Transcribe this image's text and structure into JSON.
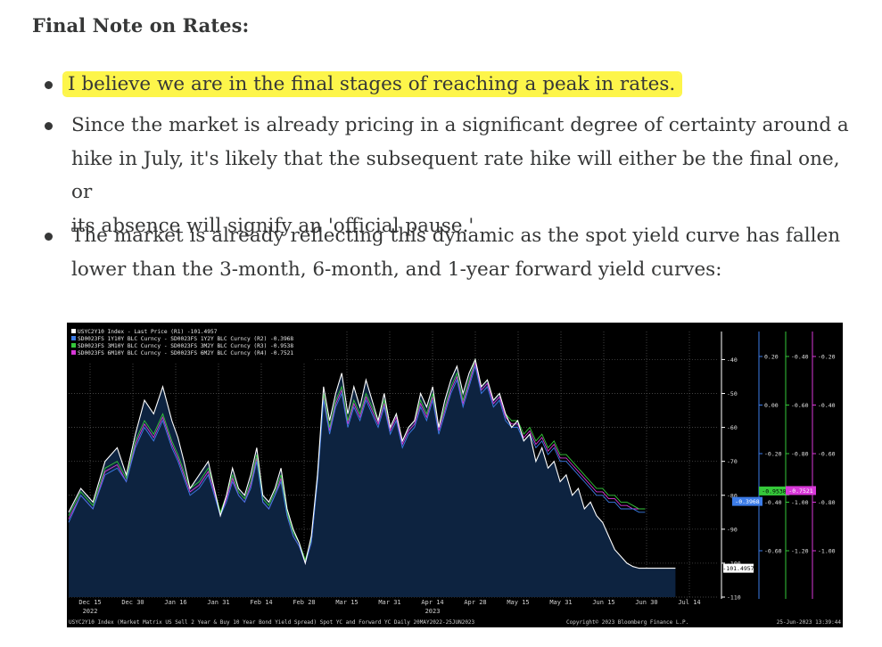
{
  "heading": "Final Note on Rates:",
  "bullets": [
    {
      "text": "I believe we are in the final stages of reaching a peak in rates.",
      "highlight": "#fdf54a"
    },
    {
      "lines": [
        "Since the market is already pricing in a significant degree of certainty around a",
        "hike in July, it's likely that the subsequent rate hike will either be the final one, or",
        "its absence will signify an 'official pause.'"
      ]
    },
    {
      "lines": [
        "The market is already reflecting this dynamic as the spot yield curve has fallen",
        "lower than the 3-month, 6-month, and 1-year forward yield curves:"
      ]
    }
  ],
  "chart_data": {
    "type": "line",
    "legend": [
      {
        "label": "USYC2Y10 Index - Last Price (R1)",
        "value": "-101.4957",
        "color": "#ffffff"
      },
      {
        "label": "SD0023FS 1Y10Y BLC Curncy - SD0023FS 1Y2Y BLC Curncy (R2)",
        "value": "-0.3968",
        "color": "#3c7ce8"
      },
      {
        "label": "SD0023FS 3M10Y BLC Curncy - SD0023FS 3M2Y BLC Curncy (R3)",
        "value": "-0.9538",
        "color": "#35c83a"
      },
      {
        "label": "SD0023FS 6M10Y BLC Curncy - SD0023FS 6M2Y BLC Curncy (R4)",
        "value": "-0.7521",
        "color": "#d838d8"
      }
    ],
    "x_ticks": [
      "Dec 15",
      "Dec 30",
      "Jan 16",
      "Jan 31",
      "Feb 14",
      "Feb 28",
      "Mar 15",
      "Mar 31",
      "Apr 14",
      "Apr 28",
      "May 15",
      "May 31",
      "Jun 15",
      "Jun 30",
      "Jul 14"
    ],
    "x_year_labels": [
      {
        "at": "Dec 15",
        "year": "2022"
      },
      {
        "at": "Apr 14",
        "year": "2023"
      }
    ],
    "axes": [
      {
        "id": "R1",
        "color": "#ffffff",
        "ticks": [
          "-40",
          "-50",
          "-60",
          "-70",
          "-80",
          "-90",
          "-100",
          "-110"
        ],
        "ylim": [
          -110,
          -37
        ],
        "last": "-101.4957"
      },
      {
        "id": "R2",
        "color": "#3c7ce8",
        "ticks": [
          "0.20",
          "0.00",
          "-0.20",
          "-0.40",
          "-0.60"
        ],
        "ylim": [
          -0.6,
          0.2
        ],
        "last": "-0.3968"
      },
      {
        "id": "R3",
        "color": "#35c83a",
        "ticks": [
          "-0.40",
          "-0.60",
          "-0.80",
          "-1.00",
          "-1.20"
        ],
        "ylim": [
          -1.2,
          -0.4
        ],
        "last": "-0.9538"
      },
      {
        "id": "R4",
        "color": "#d838d8",
        "ticks": [
          "-0.20",
          "-0.40",
          "-0.60",
          "-0.80",
          "-1.00"
        ],
        "ylim": [
          -1.0,
          -0.2
        ],
        "last": "-0.7521"
      }
    ],
    "series": [
      {
        "name": "USYC2Y10 Index",
        "axis": "R1",
        "color": "#ffffff",
        "x": [
          0,
          4,
          8,
          12,
          16,
          19,
          22,
          25,
          28,
          31,
          34,
          36,
          38,
          40,
          43,
          46,
          48,
          50,
          52,
          54,
          56,
          58,
          60,
          62,
          64,
          66,
          68,
          70,
          72,
          74,
          76,
          78,
          80,
          82,
          84,
          86,
          88,
          90,
          92,
          94,
          96,
          98,
          100,
          102,
          104,
          106,
          108,
          110,
          112,
          114,
          116,
          118,
          120,
          122,
          124,
          126,
          128,
          130,
          132,
          134,
          136,
          138,
          140,
          142,
          144,
          146,
          148,
          150,
          152,
          154,
          156,
          158,
          160,
          162,
          164,
          166,
          168,
          170,
          172,
          174,
          176,
          178,
          180,
          182,
          184,
          186,
          188,
          190,
          192,
          194,
          196,
          198,
          200
        ],
        "y": [
          -85,
          -78,
          -82,
          -70,
          -66,
          -74,
          -62,
          -52,
          -56,
          -48,
          -58,
          -63,
          -70,
          -78,
          -74,
          -70,
          -78,
          -86,
          -80,
          -72,
          -78,
          -80,
          -74,
          -66,
          -80,
          -82,
          -78,
          -72,
          -84,
          -90,
          -94,
          -100,
          -92,
          -74,
          -48,
          -58,
          -50,
          -44,
          -56,
          -48,
          -54,
          -46,
          -52,
          -58,
          -50,
          -60,
          -56,
          -64,
          -60,
          -58,
          -50,
          -54,
          -48,
          -60,
          -52,
          -46,
          -42,
          -50,
          -44,
          -40,
          -48,
          -46,
          -52,
          -50,
          -56,
          -60,
          -58,
          -64,
          -62,
          -70,
          -66,
          -72,
          -70,
          -76,
          -74,
          -80,
          -78,
          -84,
          -82,
          -86,
          -88,
          -92,
          -96,
          -98,
          -100,
          -101,
          -101.5,
          -101.5,
          -101.5,
          -101.5,
          -101.5,
          -101.5,
          -101.5
        ]
      },
      {
        "name": "1Y10Y-1Y2Y",
        "axis": "R1",
        "color": "#3c7ce8",
        "x": [
          0,
          4,
          8,
          12,
          16,
          19,
          22,
          25,
          28,
          31,
          34,
          36,
          38,
          40,
          43,
          46,
          48,
          50,
          52,
          54,
          56,
          58,
          60,
          62,
          64,
          66,
          68,
          70,
          72,
          74,
          76,
          78,
          80,
          82,
          84,
          86,
          88,
          90,
          92,
          94,
          96,
          98,
          100,
          102,
          104,
          106,
          108,
          110,
          112,
          114,
          116,
          118,
          120,
          122,
          124,
          126,
          128,
          130,
          132,
          134,
          136,
          138,
          140,
          142,
          144,
          146,
          148,
          150,
          152,
          154,
          156,
          158,
          160,
          162,
          164,
          166,
          168,
          170,
          172,
          174,
          176,
          178,
          180,
          182,
          184,
          186,
          188,
          190
        ],
        "y": [
          -88,
          -80,
          -84,
          -74,
          -72,
          -76,
          -66,
          -60,
          -64,
          -58,
          -66,
          -70,
          -75,
          -80,
          -78,
          -74,
          -80,
          -86,
          -82,
          -76,
          -80,
          -82,
          -78,
          -70,
          -82,
          -84,
          -80,
          -76,
          -86,
          -92,
          -95,
          -100,
          -94,
          -76,
          -52,
          -62,
          -54,
          -50,
          -60,
          -54,
          -58,
          -52,
          -56,
          -60,
          -54,
          -62,
          -58,
          -66,
          -62,
          -60,
          -54,
          -58,
          -52,
          -62,
          -56,
          -50,
          -46,
          -54,
          -48,
          -42,
          -50,
          -48,
          -54,
          -52,
          -58,
          -60,
          -60,
          -64,
          -62,
          -66,
          -64,
          -68,
          -66,
          -70,
          -70,
          -72,
          -74,
          -76,
          -78,
          -80,
          -80,
          -82,
          -82,
          -84,
          -84,
          -84,
          -85,
          -85
        ]
      },
      {
        "name": "3M10Y-3M2Y",
        "axis": "R1",
        "color": "#35c83a",
        "x": [
          0,
          4,
          8,
          12,
          16,
          19,
          22,
          25,
          28,
          31,
          34,
          36,
          38,
          40,
          43,
          46,
          48,
          50,
          52,
          54,
          56,
          58,
          60,
          62,
          64,
          66,
          68,
          70,
          72,
          74,
          76,
          78,
          80,
          82,
          84,
          86,
          88,
          90,
          92,
          94,
          96,
          98,
          100,
          102,
          104,
          106,
          108,
          110,
          112,
          114,
          116,
          118,
          120,
          122,
          124,
          126,
          128,
          130,
          132,
          134,
          136,
          138,
          140,
          142,
          144,
          146,
          148,
          150,
          152,
          154,
          156,
          158,
          160,
          162,
          164,
          166,
          168,
          170,
          172,
          174,
          176,
          178,
          180,
          182,
          184,
          186,
          188,
          190
        ],
        "y": [
          -86,
          -79,
          -83,
          -72,
          -70,
          -75,
          -64,
          -58,
          -62,
          -56,
          -64,
          -68,
          -73,
          -78,
          -76,
          -72,
          -78,
          -85,
          -80,
          -74,
          -79,
          -81,
          -76,
          -68,
          -81,
          -83,
          -79,
          -74,
          -85,
          -91,
          -94,
          -99,
          -93,
          -74,
          -50,
          -60,
          -52,
          -48,
          -58,
          -52,
          -56,
          -50,
          -54,
          -58,
          -52,
          -60,
          -56,
          -64,
          -60,
          -58,
          -52,
          -56,
          -50,
          -60,
          -54,
          -48,
          -44,
          -52,
          -46,
          -40,
          -48,
          -46,
          -52,
          -50,
          -56,
          -58,
          -58,
          -62,
          -60,
          -64,
          -62,
          -66,
          -64,
          -68,
          -68,
          -70,
          -72,
          -74,
          -76,
          -78,
          -78,
          -80,
          -80,
          -82,
          -82,
          -83,
          -84,
          -84
        ]
      },
      {
        "name": "6M10Y-6M2Y",
        "axis": "R1",
        "color": "#d838d8",
        "x": [
          0,
          4,
          8,
          12,
          16,
          19,
          22,
          25,
          28,
          31,
          34,
          36,
          38,
          40,
          43,
          46,
          48,
          50,
          52,
          54,
          56,
          58,
          60,
          62,
          64,
          66,
          68,
          70,
          72,
          74,
          76,
          78,
          80,
          82,
          84,
          86,
          88,
          90,
          92,
          94,
          96,
          98,
          100,
          102,
          104,
          106,
          108,
          110,
          112,
          114,
          116,
          118,
          120,
          122,
          124,
          126,
          128,
          130,
          132,
          134,
          136,
          138,
          140,
          142,
          144,
          146,
          148,
          150,
          152,
          154,
          156,
          158,
          160,
          162,
          164,
          166,
          168,
          170,
          172,
          174,
          176,
          178,
          180,
          182,
          184,
          186,
          188,
          190
        ],
        "y": [
          -87,
          -80,
          -84,
          -73,
          -71,
          -76,
          -65,
          -59,
          -63,
          -57,
          -65,
          -69,
          -74,
          -79,
          -77,
          -73,
          -79,
          -86,
          -81,
          -75,
          -80,
          -82,
          -77,
          -69,
          -82,
          -84,
          -80,
          -75,
          -86,
          -92,
          -95,
          -100,
          -94,
          -75,
          -51,
          -61,
          -53,
          -49,
          -59,
          -53,
          -57,
          -51,
          -55,
          -59,
          -53,
          -61,
          -57,
          -65,
          -61,
          -59,
          -53,
          -57,
          -51,
          -61,
          -55,
          -49,
          -45,
          -53,
          -47,
          -41,
          -49,
          -47,
          -53,
          -51,
          -57,
          -59,
          -59,
          -63,
          -61,
          -65,
          -63,
          -67,
          -65,
          -69,
          -69,
          -71,
          -73,
          -75,
          -77,
          -79,
          -79,
          -81,
          -81,
          -83,
          -83,
          -84,
          -84,
          -84
        ]
      }
    ],
    "footer_left": "USYC2Y10 Index (Market Matrix US Sell 2 Year & Buy 10 Year Bond Yield Spread) Spot YC and Forward YC  Daily 20MAY2022-25JUN2023",
    "footer_mid": "Copyright© 2023 Bloomberg Finance L.P.",
    "footer_right": "25-Jun-2023 13:39:44"
  }
}
